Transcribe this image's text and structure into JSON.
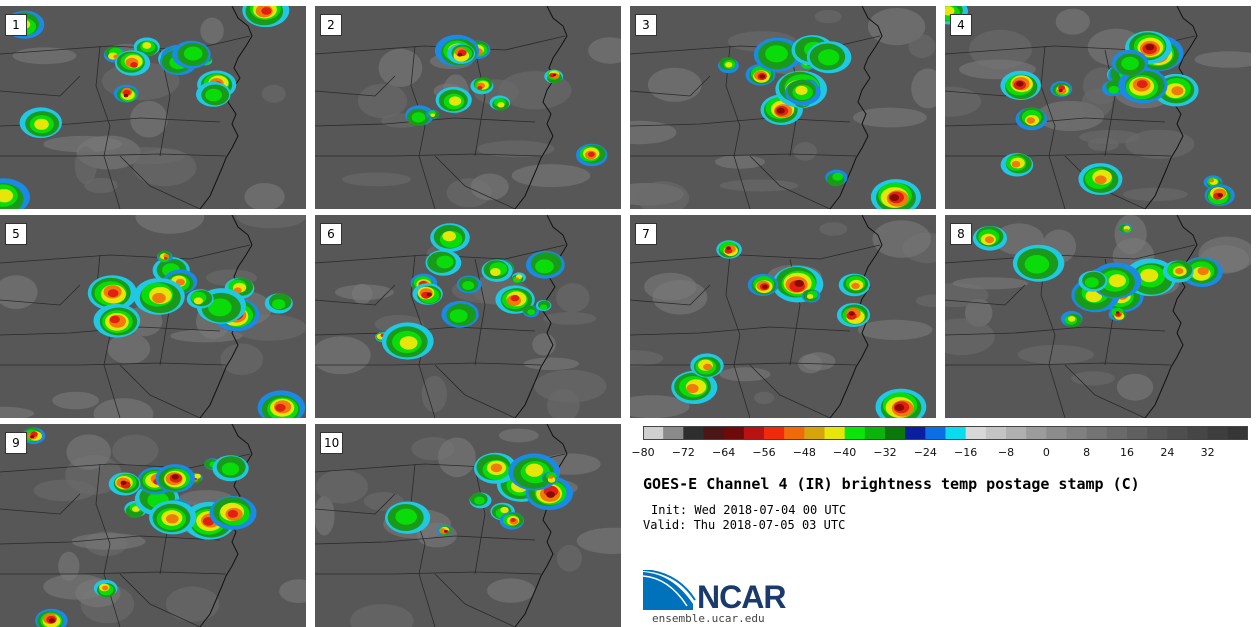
{
  "panels": [
    {
      "label": "1"
    },
    {
      "label": "2"
    },
    {
      "label": "3"
    },
    {
      "label": "4"
    },
    {
      "label": "5"
    },
    {
      "label": "6"
    },
    {
      "label": "7"
    },
    {
      "label": "8"
    },
    {
      "label": "9"
    },
    {
      "label": "10"
    }
  ],
  "colorbar": {
    "min": -80,
    "max": 40,
    "step": 4,
    "tick_labels": [
      "−80",
      "−72",
      "−64",
      "−56",
      "−48",
      "−40",
      "−32",
      "−24",
      "−16",
      "−8",
      "0",
      "8",
      "16",
      "24",
      "32"
    ],
    "colors": [
      "#cfcfcf",
      "#8a8a8a",
      "#2e2e2e",
      "#4a1616",
      "#6e0a0a",
      "#b81212",
      "#f02a0a",
      "#f06a0a",
      "#d4a40a",
      "#e6e60a",
      "#0ae60a",
      "#0ab40a",
      "#0a780a",
      "#0a1ea0",
      "#0a6ee6",
      "#0adcf0",
      "#d8d8d8",
      "#c4c4c4",
      "#b0b0b0",
      "#9c9c9c",
      "#8c8c8c",
      "#808080",
      "#747474",
      "#6a6a6a",
      "#606060",
      "#565656",
      "#4e4e4e",
      "#464646",
      "#3e3e3e",
      "#363636"
    ]
  },
  "title": "GOES-E Channel 4 (IR) brightness temp postage stamp (C)",
  "init": "Init: Wed 2018-07-04 00 UTC",
  "valid": "Valid: Thu 2018-07-05 03 UTC",
  "logo_text": "NCAR",
  "website": "ensemble.ucar.edu"
}
